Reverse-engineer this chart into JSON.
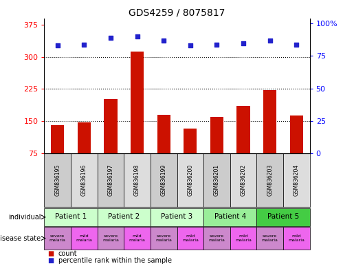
{
  "title": "GDS4259 / 8075817",
  "samples": [
    "GSM836195",
    "GSM836196",
    "GSM836197",
    "GSM836198",
    "GSM836199",
    "GSM836200",
    "GSM836201",
    "GSM836202",
    "GSM836203",
    "GSM836204"
  ],
  "counts": [
    140,
    147,
    202,
    312,
    165,
    132,
    160,
    185,
    222,
    163
  ],
  "percentiles": [
    83,
    84,
    89,
    90,
    87,
    83,
    84,
    85,
    87,
    84
  ],
  "patients": [
    {
      "label": "Patient 1",
      "cols": [
        0,
        1
      ],
      "color": "#ccffcc"
    },
    {
      "label": "Patient 2",
      "cols": [
        2,
        3
      ],
      "color": "#ccffcc"
    },
    {
      "label": "Patient 3",
      "cols": [
        4,
        5
      ],
      "color": "#ccffcc"
    },
    {
      "label": "Patient 4",
      "cols": [
        6,
        7
      ],
      "color": "#99ee99"
    },
    {
      "label": "Patient 5",
      "cols": [
        8,
        9
      ],
      "color": "#44cc44"
    }
  ],
  "disease_states": [
    {
      "label": "severe\nmalaria",
      "col": 0,
      "color": "#cc88cc"
    },
    {
      "label": "mild\nmalaria",
      "col": 1,
      "color": "#ee66ee"
    },
    {
      "label": "severe\nmalaria",
      "col": 2,
      "color": "#cc88cc"
    },
    {
      "label": "mild\nmalaria",
      "col": 3,
      "color": "#ee66ee"
    },
    {
      "label": "severe\nmalaria",
      "col": 4,
      "color": "#cc88cc"
    },
    {
      "label": "mild\nmalaria",
      "col": 5,
      "color": "#ee66ee"
    },
    {
      "label": "severe\nmalaria",
      "col": 6,
      "color": "#cc88cc"
    },
    {
      "label": "mild\nmalaria",
      "col": 7,
      "color": "#ee66ee"
    },
    {
      "label": "severe\nmalaria",
      "col": 8,
      "color": "#cc88cc"
    },
    {
      "label": "mild\nmalaria",
      "col": 9,
      "color": "#ee66ee"
    }
  ],
  "bar_color": "#cc1100",
  "dot_color": "#2222cc",
  "left_yticks": [
    75,
    150,
    225,
    300,
    375
  ],
  "left_ylim": [
    75,
    390
  ],
  "right_yticks": [
    0,
    25,
    50,
    75,
    100
  ],
  "right_ylim": [
    0,
    104
  ],
  "gridlines": [
    150,
    225,
    300
  ],
  "legend_count_color": "#cc1100",
  "legend_dot_color": "#2222cc",
  "sample_bg_even": "#cccccc",
  "sample_bg_odd": "#dddddd"
}
